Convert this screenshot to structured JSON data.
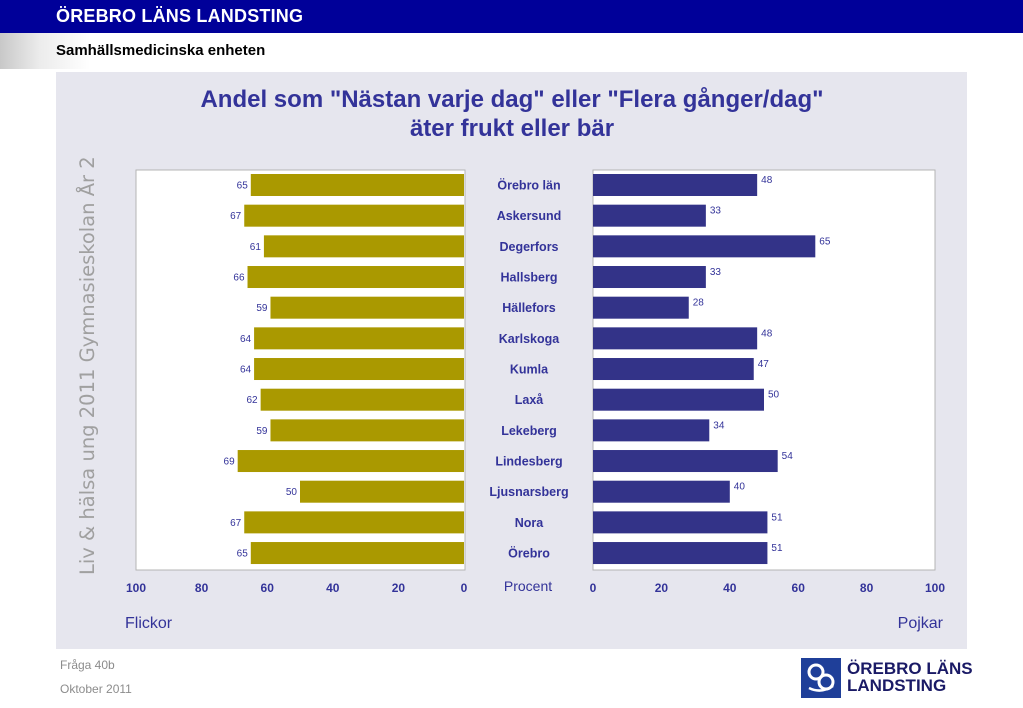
{
  "header": {
    "org_title": "ÖREBRO LÄNS LANDSTING",
    "unit_title": "Samhällsmedicinska enheten"
  },
  "side_label": "Liv & hälsa ung 2011 Gymnasieskolan År 2",
  "footer": {
    "question": "Fråga 40b",
    "date": "Oktober 2011"
  },
  "logo": {
    "text": "ÖREBRO LÄNS\nLANDSTING"
  },
  "colors": {
    "girls_bar": "#aa9900",
    "boys_bar": "#333388",
    "title": "#333399",
    "panel": "#e6e6ee"
  },
  "chart_data": {
    "type": "bar",
    "orientation": "horizontal-butterfly",
    "title_line1": "Andel som \"Nästan varje dag\" eller \"Flera gånger/dag\"",
    "title_line2": "äter frukt eller bär",
    "center_label": "Procent",
    "left_label": "Flickor",
    "right_label": "Pojkar",
    "xlim": [
      0,
      100
    ],
    "ticks": [
      0,
      20,
      40,
      60,
      80,
      100
    ],
    "categories": [
      "Örebro län",
      "Askersund",
      "Degerfors",
      "Hallsberg",
      "Hällefors",
      "Karlskoga",
      "Kumla",
      "Laxå",
      "Lekeberg",
      "Lindesberg",
      "Ljusnarsberg",
      "Nora",
      "Örebro"
    ],
    "series": [
      {
        "name": "Flickor",
        "values": [
          65,
          67,
          61,
          66,
          59,
          64,
          64,
          62,
          59,
          69,
          50,
          67,
          65
        ]
      },
      {
        "name": "Pojkar",
        "values": [
          48,
          33,
          65,
          33,
          28,
          48,
          47,
          50,
          34,
          54,
          40,
          51,
          51
        ]
      }
    ]
  }
}
